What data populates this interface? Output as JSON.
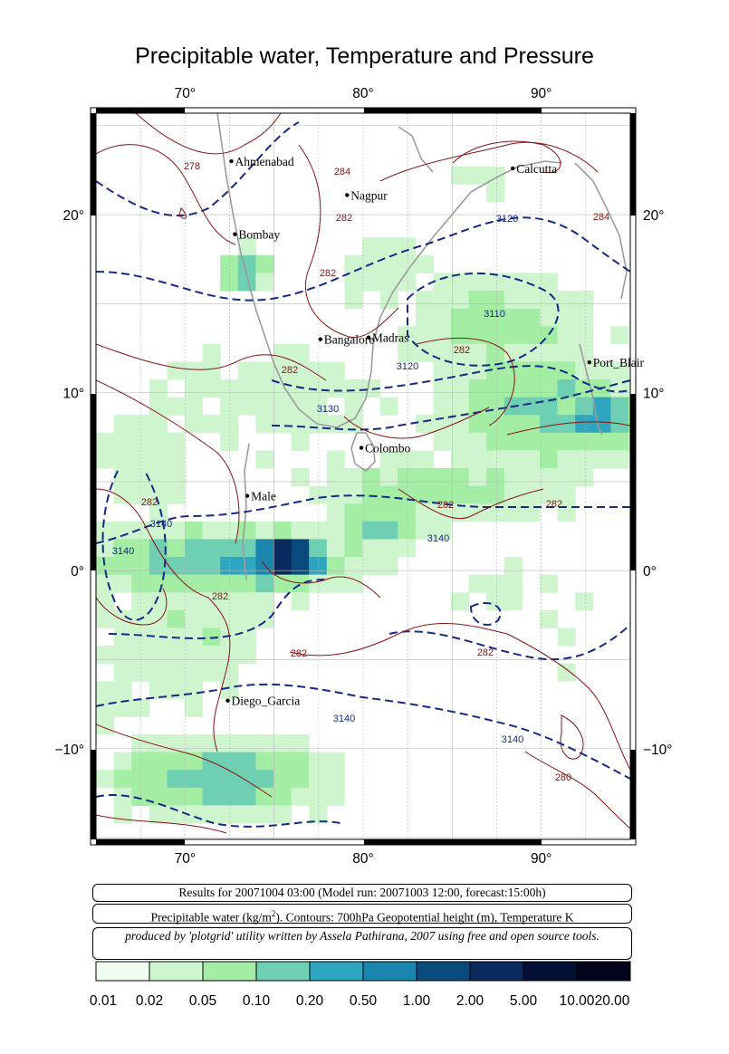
{
  "title": "Precipitable water, Temperature and Pressure",
  "longitude_ticks": [
    "70°",
    "80°",
    "90°"
  ],
  "latitude_ticks": [
    "20°",
    "10°",
    "0°",
    "−10°"
  ],
  "cities": [
    {
      "name": "Ahmenabad",
      "lon": 72.6,
      "lat": 23.0
    },
    {
      "name": "Nagpur",
      "lon": 79.1,
      "lat": 21.1
    },
    {
      "name": "Calcutta",
      "lon": 88.4,
      "lat": 22.6
    },
    {
      "name": "Bombay",
      "lon": 72.8,
      "lat": 18.9
    },
    {
      "name": "Madras",
      "lon": 80.3,
      "lat": 13.1
    },
    {
      "name": "Bangalore",
      "lon": 77.6,
      "lat": 13.0
    },
    {
      "name": "Port_Blair",
      "lon": 92.7,
      "lat": 11.7
    },
    {
      "name": "Colombo",
      "lon": 79.9,
      "lat": 6.9
    },
    {
      "name": "Male",
      "lon": 73.5,
      "lat": 4.2
    },
    {
      "name": "Diego_Garcia",
      "lon": 72.4,
      "lat": -7.3
    }
  ],
  "contour_labels": [
    "278",
    "284",
    "282",
    "282",
    "3120",
    "284",
    "3110",
    "3120",
    "282",
    "282",
    "3130",
    "282",
    "282",
    "3140",
    "282",
    "3140",
    "3140",
    "282",
    "282",
    "282",
    "3140",
    "3140",
    "280"
  ],
  "info": {
    "results": "Results for 20071004 03:00 (Model run: 20071003 12:00, forecast:15:00h)",
    "legend_prefix": "Precipitable water (kg/m",
    "legend_sup": "2",
    "legend_suffix": ").  Contours: 700hPa Geopotential height (m), Temperature K",
    "credit": "produced by 'plotgrid' utility written by Assela Pathirana, 2007 using free and open source tools."
  },
  "colorbar": {
    "labels": [
      "0.01",
      "0.02",
      "0.05",
      "0.10",
      "0.20",
      "0.50",
      "1.00",
      "2.00",
      "5.00",
      "10.00",
      "20.00"
    ],
    "colors": [
      "#effcf0",
      "#cff5cf",
      "#a3eda4",
      "#6ecfb2",
      "#2ea6c0",
      "#1a86ae",
      "#094a7c",
      "#0a2a5e",
      "#040f36",
      "#02041b"
    ]
  }
}
